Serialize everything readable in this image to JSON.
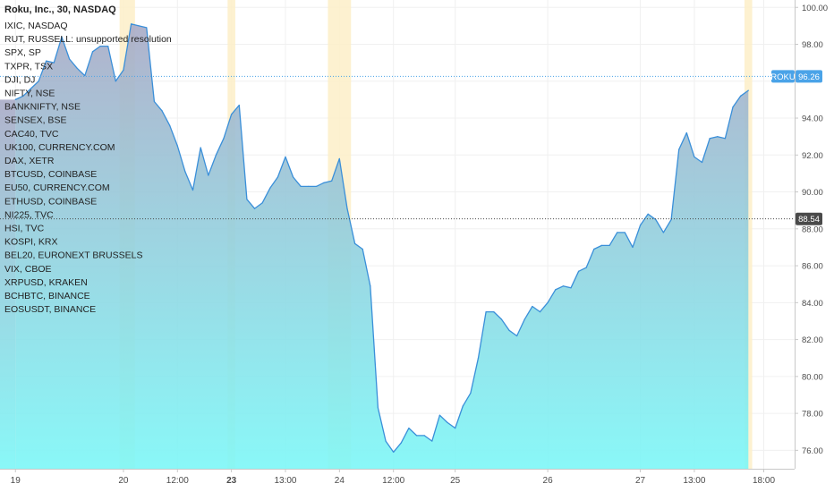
{
  "chart_data": {
    "type": "area",
    "title": "Roku, Inc., 30, NASDAQ",
    "symbol": "ROKU",
    "last_price": 96.26,
    "reference_price": 88.54,
    "ylim": [
      75,
      100.4
    ],
    "y_ticks": [
      76,
      78,
      80,
      82,
      84,
      86,
      88,
      90,
      92,
      94,
      96,
      98,
      100
    ],
    "y_tick_labels": [
      "76.00",
      "78.00",
      "80.00",
      "82.00",
      "84.00",
      "86.00",
      "88.00",
      "90.00",
      "92.00",
      "94.00",
      "96.00",
      "98.00",
      "100.00"
    ],
    "x_range": [
      -2,
      101
    ],
    "x_ticks": [
      {
        "label": "19",
        "x": 0,
        "bold": false
      },
      {
        "label": "20",
        "x": 14,
        "bold": false
      },
      {
        "label": "12:00",
        "x": 21,
        "bold": false
      },
      {
        "label": "23",
        "x": 28,
        "bold": true
      },
      {
        "label": "13:00",
        "x": 35,
        "bold": false
      },
      {
        "label": "24",
        "x": 42,
        "bold": false
      },
      {
        "label": "12:00",
        "x": 49,
        "bold": false
      },
      {
        "label": "25",
        "x": 57,
        "bold": false
      },
      {
        "label": "26",
        "x": 69,
        "bold": false
      },
      {
        "label": "27",
        "x": 81,
        "bold": false
      },
      {
        "label": "13:00",
        "x": 88,
        "bold": false
      },
      {
        "label": "18:00",
        "x": 97,
        "bold": false
      }
    ],
    "highlight_bands": [
      [
        13.5,
        15.5
      ],
      [
        27.5,
        28.5
      ],
      [
        40.5,
        43.5
      ],
      [
        94.5,
        95.5
      ]
    ],
    "x": [
      0,
      1,
      2,
      3,
      4,
      5,
      6,
      7,
      8,
      9,
      10,
      11,
      12,
      13,
      14,
      15,
      16,
      17,
      18,
      19,
      20,
      21,
      22,
      23,
      24,
      25,
      26,
      27,
      28,
      29,
      30,
      31,
      32,
      33,
      34,
      35,
      36,
      37,
      38,
      39,
      40,
      41,
      42,
      43,
      44,
      45,
      46,
      47,
      48,
      49,
      50,
      51,
      52,
      53,
      54,
      55,
      56,
      57,
      58,
      59,
      60,
      61,
      62,
      63,
      64,
      65,
      66,
      67,
      68,
      69,
      70,
      71,
      72,
      73,
      74,
      75,
      76,
      77,
      78,
      79,
      80,
      81,
      82,
      83,
      84,
      85,
      86,
      87,
      88,
      89,
      90,
      91,
      92,
      93,
      94,
      95
    ],
    "values": [
      95.0,
      95.2,
      95.6,
      96.0,
      97.1,
      97.0,
      98.4,
      97.2,
      96.7,
      96.3,
      97.6,
      97.9,
      97.9,
      96.0,
      96.6,
      99.1,
      99.0,
      98.9,
      94.9,
      94.4,
      93.6,
      92.5,
      91.1,
      90.1,
      92.4,
      90.9,
      92.0,
      92.9,
      94.2,
      94.7,
      89.6,
      89.1,
      89.4,
      90.2,
      90.8,
      91.9,
      90.8,
      90.3,
      90.3,
      90.3,
      90.5,
      90.6,
      91.8,
      89.1,
      87.2,
      86.9,
      84.9,
      78.3,
      76.5,
      75.9,
      76.4,
      77.2,
      76.8,
      76.8,
      76.5,
      77.9,
      77.5,
      77.2,
      78.4,
      79.1,
      81.0,
      83.5,
      83.5,
      83.1,
      82.5,
      82.2,
      83.1,
      83.8,
      83.5,
      84.0,
      84.7,
      84.9,
      84.8,
      85.7,
      85.9,
      86.9,
      87.1,
      87.1,
      87.8,
      87.8,
      87.0,
      88.2,
      88.8,
      88.5,
      87.8,
      88.5,
      92.3,
      93.2,
      91.9,
      91.6,
      92.9,
      93.0,
      92.9,
      94.6,
      95.2,
      95.5
    ]
  },
  "legend": {
    "title": "Roku, Inc., 30, NASDAQ",
    "items": [
      "IXIC, NASDAQ",
      "RUT, RUSSELL: unsupported resolution",
      "SPX, SP",
      "TXPR, TSX",
      "DJI, DJ",
      "NIFTY, NSE",
      "BANKNIFTY, NSE",
      "SENSEX, BSE",
      "CAC40, TVC",
      "UK100, CURRENCY.COM",
      "DAX, XETR",
      "BTCUSD, COINBASE",
      "EU50, CURRENCY.COM",
      "ETHUSD, COINBASE",
      "NI225, TVC",
      "HSI, TVC",
      "KOSPI, KRX",
      "BEL20, EURONEXT BRUSSELS",
      "VIX, CBOE",
      "XRPUSD, KRAKEN",
      "BCHBTC, BINANCE",
      "EOSUSDT, BINANCE"
    ]
  },
  "badges": {
    "symbol_label": "ROKU",
    "last_price_label": "96.26",
    "reference_price_label": "88.54"
  },
  "colors": {
    "line": "#3a8fd9",
    "area_top": "#a8aac6",
    "area_bottom": "#7cf7f7",
    "highlight": "#fdeec8",
    "price_badge": "#4aa3e8",
    "reference_badge": "#4a4a4a",
    "grid": "#f0f0f0"
  }
}
